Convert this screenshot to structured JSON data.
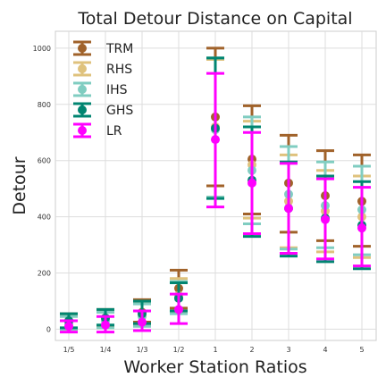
{
  "chart_data": {
    "type": "scatter",
    "title": "Total Detour Distance on Capital",
    "xlabel": "Worker Station Ratios",
    "ylabel": "Detour",
    "categories": [
      "1/5",
      "1/4",
      "1/3",
      "1/2",
      "1",
      "2",
      "3",
      "4",
      "5"
    ],
    "yticks": [
      0,
      200,
      400,
      600,
      800,
      1000
    ],
    "ylim": [
      -40,
      1060
    ],
    "grid": true,
    "legend_position": "top-left",
    "series": [
      {
        "name": "TRM",
        "color": "#a0622a",
        "mean": [
          30,
          40,
          60,
          145,
          755,
          605,
          520,
          475,
          455
        ],
        "low": [
          0,
          10,
          25,
          75,
          510,
          410,
          345,
          315,
          295
        ],
        "high": [
          55,
          70,
          105,
          210,
          1000,
          795,
          690,
          635,
          620
        ]
      },
      {
        "name": "RHS",
        "color": "#dfc27d",
        "mean": [
          25,
          35,
          50,
          120,
          720,
          585,
          455,
          420,
          400
        ],
        "low": [
          0,
          5,
          15,
          60,
          470,
          395,
          290,
          275,
          255
        ],
        "high": [
          50,
          65,
          95,
          180,
          960,
          740,
          620,
          565,
          545
        ]
      },
      {
        "name": "IHS",
        "color": "#80cdc1",
        "mean": [
          20,
          30,
          45,
          110,
          710,
          565,
          480,
          440,
          425
        ],
        "low": [
          0,
          5,
          10,
          55,
          470,
          375,
          285,
          290,
          265
        ],
        "high": [
          45,
          60,
          90,
          170,
          965,
          755,
          650,
          595,
          580
        ]
      },
      {
        "name": "GHS",
        "color": "#018571",
        "mean": [
          30,
          40,
          55,
          110,
          715,
          530,
          430,
          395,
          370
        ],
        "low": [
          5,
          15,
          20,
          65,
          465,
          330,
          260,
          240,
          215
        ],
        "high": [
          55,
          70,
          100,
          165,
          965,
          720,
          595,
          545,
          525
        ]
      },
      {
        "name": "LR",
        "color": "#ff00ff",
        "mean": [
          10,
          15,
          25,
          70,
          675,
          520,
          430,
          390,
          360
        ],
        "low": [
          -10,
          -10,
          -5,
          20,
          435,
          340,
          270,
          250,
          225
        ],
        "high": [
          30,
          45,
          65,
          125,
          910,
          700,
          590,
          535,
          505
        ]
      }
    ]
  }
}
